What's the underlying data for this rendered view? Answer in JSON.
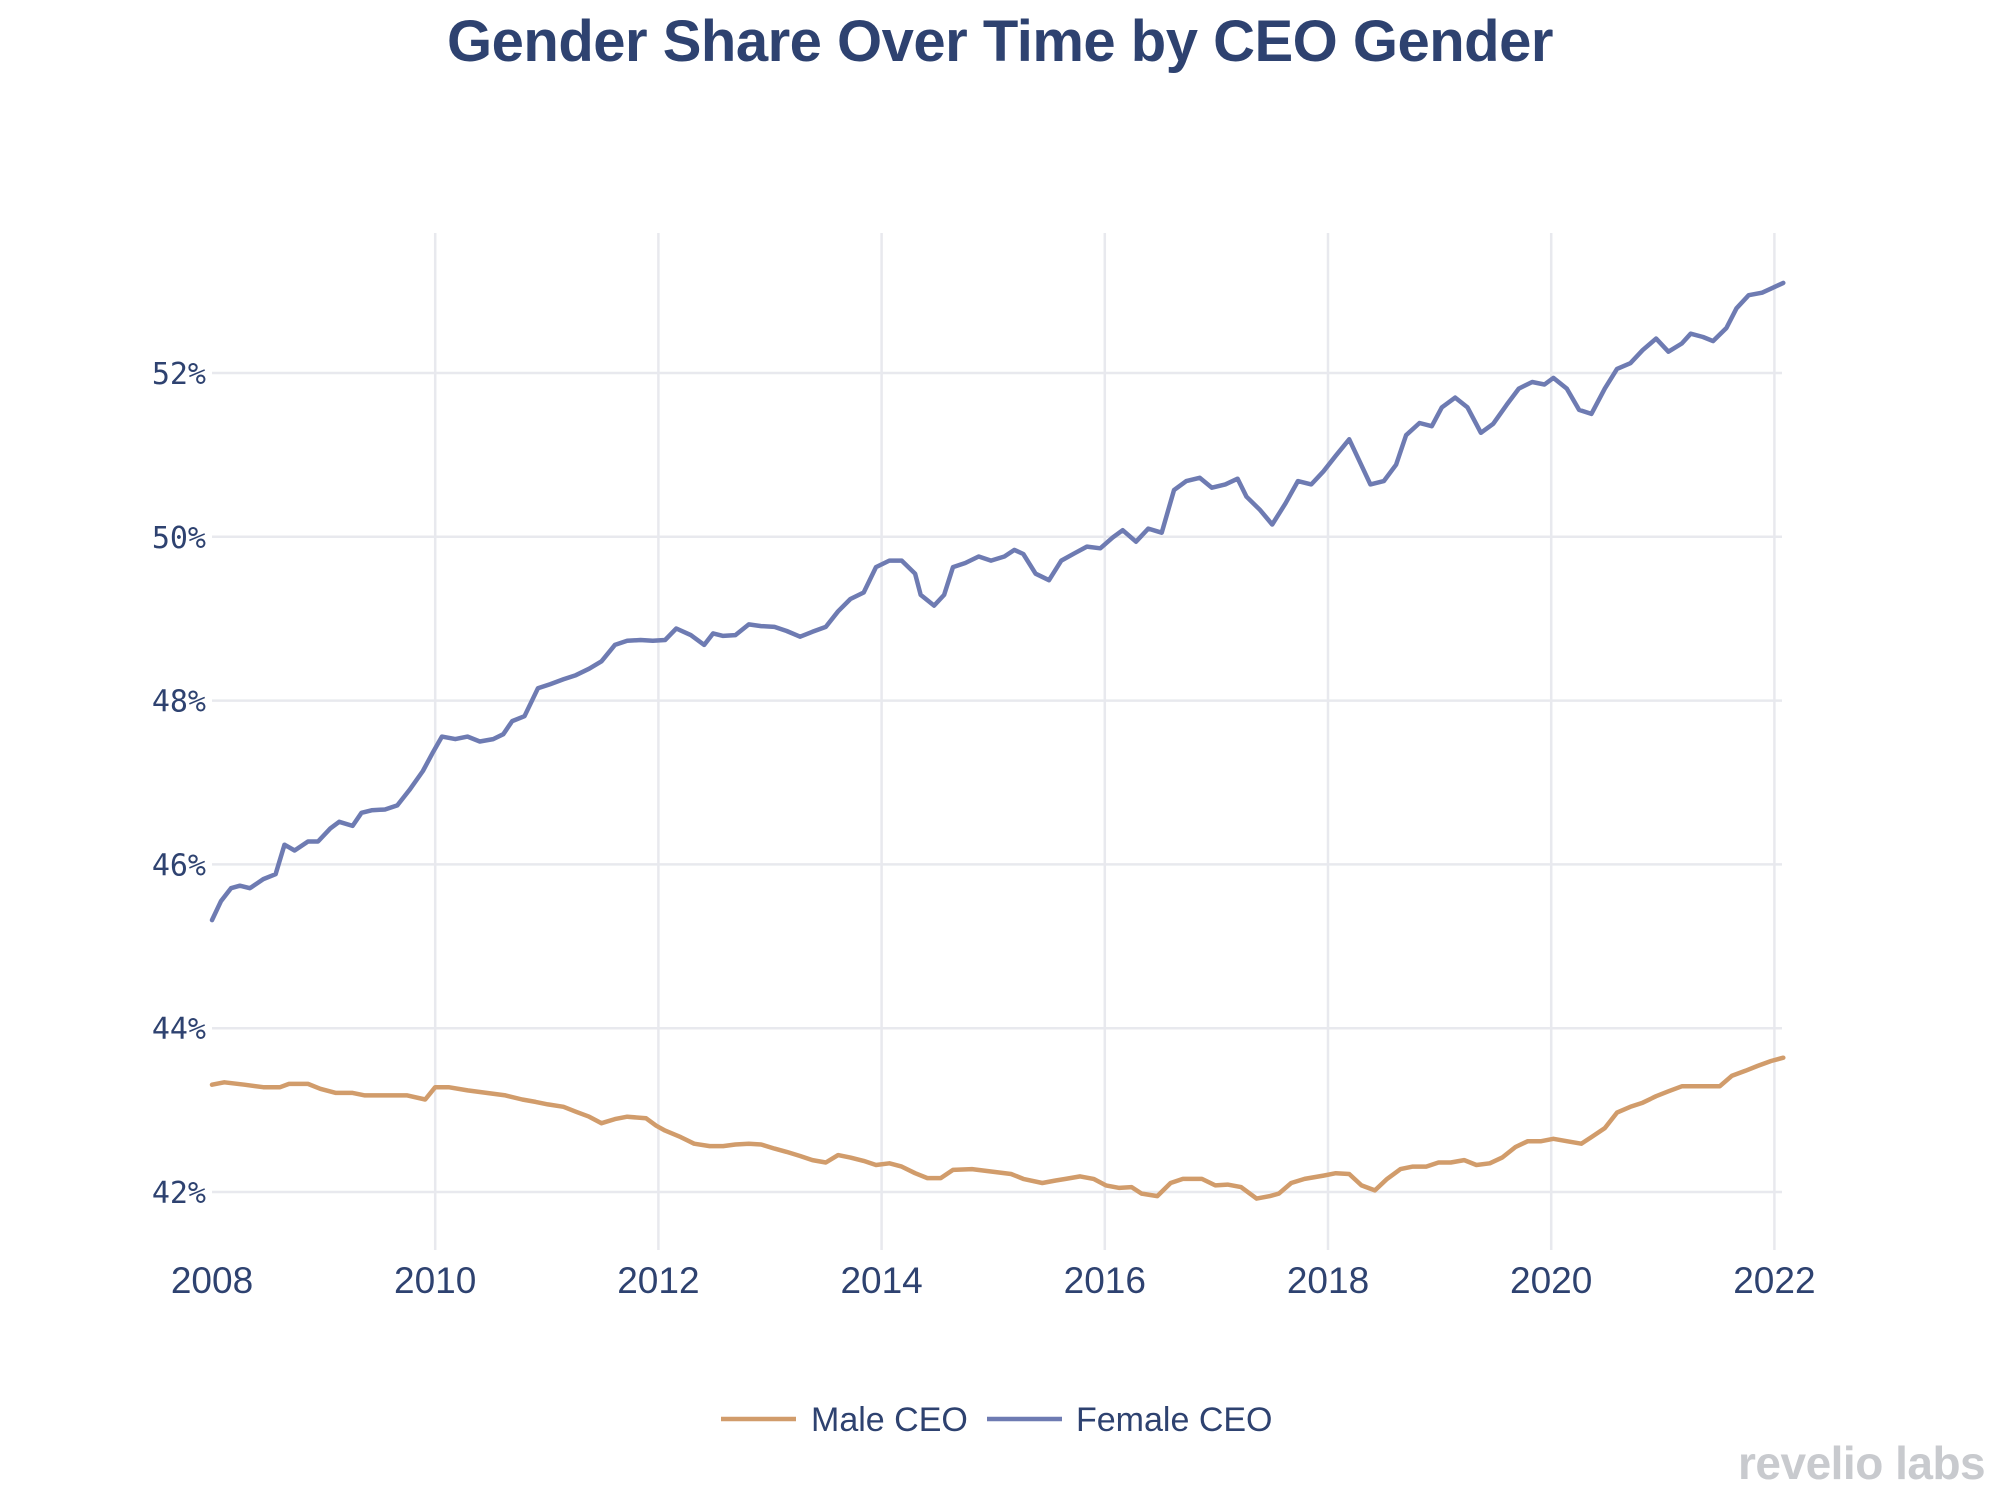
{
  "chart_data": {
    "type": "line",
    "title": "Gender Share Over Time by CEO Gender",
    "xlabel": "",
    "ylabel": "",
    "xlim": [
      2008,
      2022.1
    ],
    "ylim": [
      41.3,
      54.0
    ],
    "x_ticks": [
      2008,
      2010,
      2012,
      2014,
      2016,
      2018,
      2020,
      2022
    ],
    "x_tick_labels": [
      "2008",
      "2010",
      "2012",
      "2014",
      "2016",
      "2018",
      "2020",
      "2022"
    ],
    "y_ticks": [
      42,
      44,
      46,
      48,
      50,
      52
    ],
    "y_tick_labels": [
      "42%",
      "44%",
      "46%",
      "48%",
      "50%",
      "52%"
    ],
    "grid": true,
    "legend_position": "bottom-center",
    "series": [
      {
        "name": "Male CEO",
        "color": "#d19c6b",
        "x": [
          2008.0,
          2008.11,
          2008.29,
          2008.46,
          2008.61,
          2008.69,
          2008.86,
          2008.97,
          2009.11,
          2009.26,
          2009.37,
          2009.55,
          2009.75,
          2009.91,
          2010.0,
          2010.12,
          2010.29,
          2010.46,
          2010.63,
          2010.78,
          2010.9,
          2011.01,
          2011.15,
          2011.26,
          2011.38,
          2011.49,
          2011.61,
          2011.72,
          2011.89,
          2011.98,
          2012.06,
          2012.2,
          2012.32,
          2012.46,
          2012.58,
          2012.69,
          2012.81,
          2012.92,
          2013.04,
          2013.15,
          2013.27,
          2013.38,
          2013.5,
          2013.61,
          2013.72,
          2013.84,
          2013.95,
          2014.07,
          2014.18,
          2014.3,
          2014.41,
          2014.53,
          2014.64,
          2014.81,
          2014.98,
          2015.16,
          2015.27,
          2015.44,
          2015.56,
          2015.65,
          2015.78,
          2015.9,
          2016.01,
          2016.13,
          2016.24,
          2016.33,
          2016.47,
          2016.59,
          2016.7,
          2016.87,
          2016.99,
          2017.1,
          2017.22,
          2017.36,
          2017.48,
          2017.56,
          2017.67,
          2017.79,
          2017.96,
          2018.07,
          2018.19,
          2018.3,
          2018.42,
          2018.53,
          2018.65,
          2018.76,
          2018.88,
          2018.99,
          2019.1,
          2019.22,
          2019.33,
          2019.45,
          2019.56,
          2019.68,
          2019.79,
          2019.91,
          2020.02,
          2020.14,
          2020.27,
          2020.36,
          2020.48,
          2020.59,
          2020.71,
          2020.82,
          2020.94,
          2021.05,
          2021.17,
          2021.34,
          2021.51,
          2021.62,
          2021.74,
          2021.85,
          2021.97,
          2022.08
        ],
        "values": [
          43.31,
          43.34,
          43.31,
          43.28,
          43.28,
          43.32,
          43.32,
          43.26,
          43.21,
          43.21,
          43.18,
          43.18,
          43.18,
          43.13,
          43.28,
          43.28,
          43.24,
          43.21,
          43.18,
          43.13,
          43.1,
          43.07,
          43.04,
          42.98,
          42.92,
          42.84,
          42.89,
          42.92,
          42.9,
          42.81,
          42.75,
          42.67,
          42.59,
          42.56,
          42.56,
          42.58,
          42.59,
          42.58,
          42.53,
          42.49,
          42.44,
          42.39,
          42.36,
          42.45,
          42.42,
          42.38,
          42.33,
          42.35,
          42.31,
          42.23,
          42.17,
          42.17,
          42.27,
          42.28,
          42.25,
          42.22,
          42.16,
          42.11,
          42.14,
          42.16,
          42.19,
          42.16,
          42.08,
          42.05,
          42.06,
          41.98,
          41.95,
          42.11,
          42.16,
          42.16,
          42.08,
          42.09,
          42.06,
          41.92,
          41.95,
          41.98,
          42.11,
          42.16,
          42.2,
          42.23,
          42.22,
          42.08,
          42.02,
          42.16,
          42.28,
          42.31,
          42.31,
          42.36,
          42.36,
          42.39,
          42.33,
          42.35,
          42.42,
          42.55,
          42.62,
          42.62,
          42.65,
          42.62,
          42.59,
          42.67,
          42.78,
          42.97,
          43.04,
          43.09,
          43.17,
          43.23,
          43.29,
          43.29,
          43.29,
          43.42,
          43.48,
          43.54,
          43.6,
          43.64
        ]
      },
      {
        "name": "Female CEO",
        "color": "#6e7bb2",
        "x": [
          2008.0,
          2008.08,
          2008.17,
          2008.25,
          2008.34,
          2008.46,
          2008.57,
          2008.65,
          2008.74,
          2008.86,
          2008.95,
          2009.06,
          2009.14,
          2009.26,
          2009.34,
          2009.43,
          2009.55,
          2009.66,
          2009.77,
          2009.89,
          2009.98,
          2010.06,
          2010.18,
          2010.29,
          2010.4,
          2010.52,
          2010.61,
          2010.69,
          2010.8,
          2010.92,
          2011.03,
          2011.15,
          2011.26,
          2011.38,
          2011.49,
          2011.61,
          2011.72,
          2011.84,
          2011.95,
          2012.06,
          2012.16,
          2012.29,
          2012.41,
          2012.49,
          2012.58,
          2012.69,
          2012.81,
          2012.92,
          2013.04,
          2013.15,
          2013.27,
          2013.38,
          2013.5,
          2013.61,
          2013.72,
          2013.84,
          2013.95,
          2014.07,
          2014.18,
          2014.3,
          2014.35,
          2014.47,
          2014.56,
          2014.64,
          2014.75,
          2014.87,
          2014.98,
          2015.1,
          2015.19,
          2015.27,
          2015.38,
          2015.5,
          2015.61,
          2015.73,
          2015.84,
          2015.96,
          2016.07,
          2016.16,
          2016.28,
          2016.39,
          2016.51,
          2016.62,
          2016.73,
          2016.85,
          2016.96,
          2017.08,
          2017.19,
          2017.27,
          2017.39,
          2017.5,
          2017.62,
          2017.73,
          2017.85,
          2017.96,
          2018.07,
          2018.19,
          2018.28,
          2018.38,
          2018.5,
          2018.61,
          2018.7,
          2018.82,
          2018.93,
          2019.02,
          2019.14,
          2019.25,
          2019.37,
          2019.48,
          2019.6,
          2019.71,
          2019.83,
          2019.94,
          2020.02,
          2020.14,
          2020.25,
          2020.36,
          2020.48,
          2020.59,
          2020.71,
          2020.82,
          2020.94,
          2021.05,
          2021.17,
          2021.25,
          2021.36,
          2021.45,
          2021.57,
          2021.66,
          2021.77,
          2021.89,
          2021.97,
          2022.08
        ],
        "values": [
          45.32,
          45.55,
          45.71,
          45.74,
          45.71,
          45.82,
          45.88,
          46.24,
          46.17,
          46.28,
          46.28,
          46.44,
          46.52,
          46.47,
          46.63,
          46.66,
          46.67,
          46.72,
          46.91,
          47.14,
          47.37,
          47.56,
          47.53,
          47.56,
          47.5,
          47.53,
          47.59,
          47.75,
          47.81,
          48.15,
          48.2,
          48.26,
          48.31,
          48.39,
          48.48,
          48.68,
          48.73,
          48.74,
          48.73,
          48.74,
          48.88,
          48.8,
          48.68,
          48.82,
          48.79,
          48.8,
          48.93,
          48.91,
          48.9,
          48.85,
          48.78,
          48.84,
          48.9,
          49.09,
          49.24,
          49.32,
          49.63,
          49.71,
          49.71,
          49.55,
          49.29,
          49.16,
          49.29,
          49.63,
          49.68,
          49.76,
          49.71,
          49.76,
          49.84,
          49.79,
          49.55,
          49.47,
          49.71,
          49.8,
          49.88,
          49.86,
          49.99,
          50.08,
          49.94,
          50.1,
          50.05,
          50.57,
          50.68,
          50.72,
          50.6,
          50.64,
          50.71,
          50.49,
          50.33,
          50.15,
          50.41,
          50.68,
          50.64,
          50.8,
          50.99,
          51.19,
          50.93,
          50.64,
          50.68,
          50.88,
          51.24,
          51.39,
          51.35,
          51.58,
          51.7,
          51.58,
          51.27,
          51.38,
          51.61,
          51.81,
          51.89,
          51.86,
          51.94,
          51.81,
          51.55,
          51.5,
          51.81,
          52.05,
          52.12,
          52.28,
          52.42,
          52.26,
          52.36,
          52.48,
          52.44,
          52.39,
          52.55,
          52.79,
          52.95,
          52.98,
          53.03,
          53.1
        ]
      }
    ]
  },
  "legend": {
    "items": [
      {
        "label": "Male CEO",
        "color": "#d19c6b"
      },
      {
        "label": "Female CEO",
        "color": "#6e7bb2"
      }
    ]
  },
  "watermark": "revelio labs",
  "colors": {
    "text": "#2e4270",
    "grid": "#e8e9ee",
    "watermark": "#c8cace"
  }
}
